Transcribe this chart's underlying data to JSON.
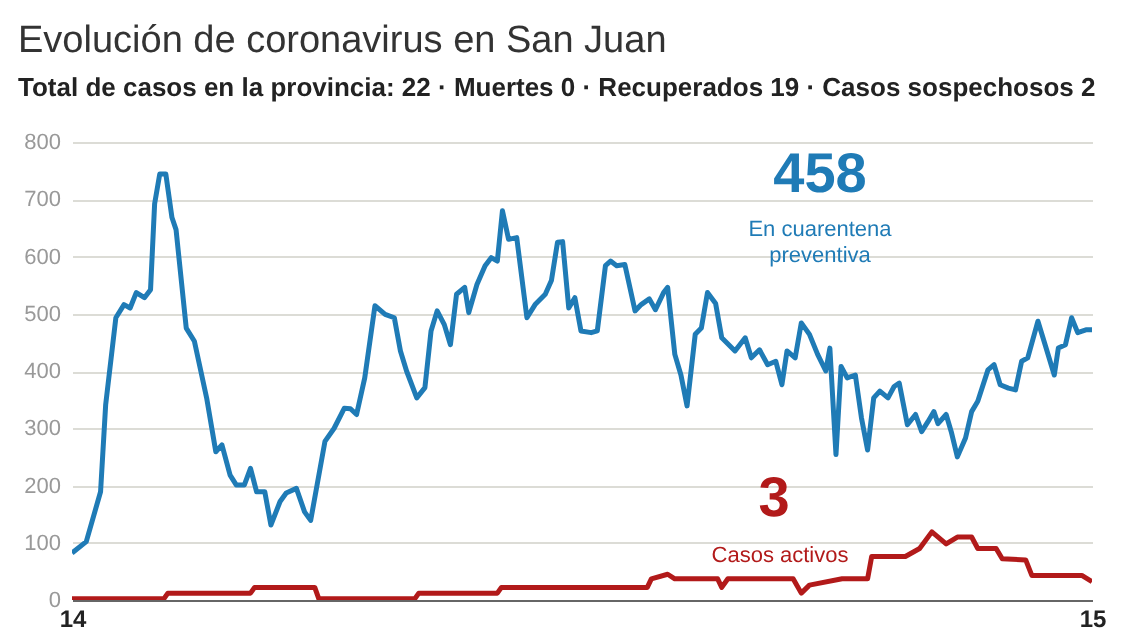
{
  "chart_data": {
    "type": "line",
    "title": "Evolución de coronavirus en San Juan",
    "subtitle": "Total de casos en la provincia: 22 · Muertes 0 · Recuperados 19 · Casos sospechosos 2",
    "xlim": [
      14,
      15
    ],
    "xticks": [
      14,
      15
    ],
    "ylim": [
      0,
      800
    ],
    "yticks": [
      0,
      100,
      200,
      300,
      400,
      500,
      600,
      700,
      800
    ],
    "grid": "y",
    "marker": "none",
    "line_style": "solid",
    "annotations": [
      "458",
      "3"
    ],
    "series": [
      {
        "name": "En cuarentena preventiva",
        "color": "#1f7bb6",
        "x": [
          14.0,
          14.014,
          14.028,
          14.033,
          14.043,
          14.051,
          14.057,
          14.063,
          14.071,
          14.077,
          14.081,
          14.086,
          14.092,
          14.098,
          14.102,
          14.112,
          14.12,
          14.132,
          14.141,
          14.147,
          14.155,
          14.161,
          14.169,
          14.175,
          14.181,
          14.189,
          14.195,
          14.204,
          14.21,
          14.22,
          14.228,
          14.234,
          14.248,
          14.257,
          14.267,
          14.273,
          14.279,
          14.287,
          14.297,
          14.307,
          14.316,
          14.322,
          14.328,
          14.338,
          14.346,
          14.352,
          14.358,
          14.365,
          14.371,
          14.377,
          14.385,
          14.389,
          14.397,
          14.405,
          14.411,
          14.417,
          14.422,
          14.428,
          14.436,
          14.446,
          14.454,
          14.464,
          14.47,
          14.476,
          14.481,
          14.487,
          14.493,
          14.499,
          14.509,
          14.515,
          14.523,
          14.528,
          14.534,
          14.542,
          14.552,
          14.558,
          14.566,
          14.572,
          14.58,
          14.584,
          14.591,
          14.597,
          14.603,
          14.611,
          14.617,
          14.623,
          14.631,
          14.637,
          14.65,
          14.66,
          14.666,
          14.674,
          14.682,
          14.69,
          14.696,
          14.701,
          14.709,
          14.715,
          14.723,
          14.731,
          14.739,
          14.743,
          14.749,
          14.754,
          14.76,
          14.768,
          14.774,
          14.78,
          14.786,
          14.792,
          14.8,
          14.806,
          14.811,
          14.819,
          14.827,
          14.833,
          14.839,
          14.845,
          14.849,
          14.857,
          14.862,
          14.868,
          14.876,
          14.882,
          14.888,
          14.898,
          14.904,
          14.91,
          14.918,
          14.925,
          14.931,
          14.937,
          14.947,
          14.955,
          14.963,
          14.967,
          14.974,
          14.98,
          14.986,
          14.994,
          15.0
        ],
        "values": [
          82,
          102,
          189,
          341,
          493,
          516,
          510,
          537,
          528,
          542,
          692,
          744,
          744,
          668,
          647,
          475,
          452,
          353,
          259,
          271,
          218,
          201,
          201,
          230,
          189,
          189,
          131,
          172,
          187,
          195,
          154,
          139,
          277,
          300,
          335,
          334,
          324,
          388,
          514,
          499,
          493,
          435,
          400,
          353,
          371,
          470,
          505,
          481,
          446,
          534,
          546,
          502,
          551,
          584,
          598,
          592,
          680,
          630,
          633,
          493,
          516,
          534,
          558,
          625,
          626,
          510,
          528,
          470,
          467,
          470,
          584,
          592,
          584,
          586,
          505,
          516,
          526,
          507,
          537,
          546,
          429,
          393,
          339,
          464,
          475,
          537,
          518,
          458,
          435,
          458,
          423,
          437,
          411,
          417,
          376,
          435,
          423,
          484,
          464,
          429,
          400,
          440,
          254,
          408,
          388,
          393,
          318,
          262,
          353,
          365,
          353,
          373,
          379,
          306,
          324,
          294,
          311,
          329,
          308,
          324,
          294,
          250,
          283,
          329,
          347,
          402,
          411,
          376,
          370,
          367,
          417,
          423,
          487,
          440,
          393,
          440,
          446,
          493,
          467,
          472,
          472
        ]
      },
      {
        "name": "Casos activos",
        "color": "#b21a1a",
        "x": [
          14.0,
          14.09,
          14.094,
          14.175,
          14.179,
          14.238,
          14.242,
          14.336,
          14.34,
          14.417,
          14.421,
          14.564,
          14.568,
          14.584,
          14.591,
          14.633,
          14.637,
          14.643,
          14.707,
          14.715,
          14.723,
          14.755,
          14.78,
          14.784,
          14.817,
          14.831,
          14.843,
          14.857,
          14.868,
          14.882,
          14.888,
          14.906,
          14.912,
          14.935,
          14.941,
          14.99,
          15.0
        ],
        "values": [
          2,
          2,
          12,
          12,
          22,
          22,
          2,
          2,
          12,
          12,
          22,
          22,
          37,
          45,
          37,
          37,
          22,
          37,
          37,
          12,
          26,
          37,
          37,
          76,
          76,
          90,
          119,
          98,
          110,
          110,
          90,
          90,
          72,
          70,
          43,
          43,
          32
        ]
      }
    ]
  }
}
